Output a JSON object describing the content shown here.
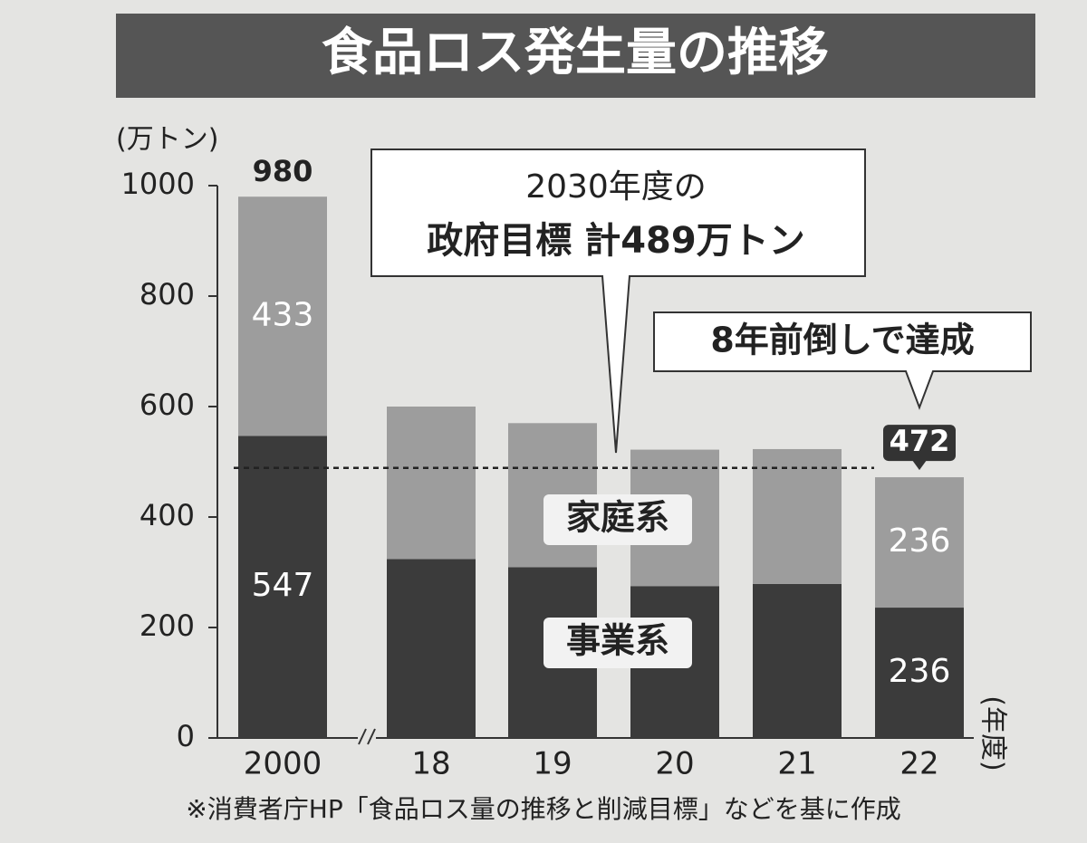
{
  "chart_data": {
    "type": "stacked-bar",
    "title": "食品ロス発生量の推移",
    "ylabel": "(万トン)",
    "xlabel": "(年度)",
    "categories": [
      "2000",
      "18",
      "19",
      "20",
      "21",
      "22"
    ],
    "series": [
      {
        "name": "事業系",
        "color": "#3b3b3b",
        "values": [
          547,
          324,
          309,
          275,
          279,
          236
        ],
        "show_labels": [
          true,
          false,
          false,
          false,
          false,
          true
        ]
      },
      {
        "name": "家庭系",
        "color": "#9d9d9d",
        "values": [
          433,
          276,
          261,
          247,
          244,
          236
        ],
        "show_labels": [
          true,
          false,
          false,
          false,
          false,
          true
        ]
      }
    ],
    "totals": [
      980,
      null,
      null,
      null,
      null,
      472
    ],
    "target": 489,
    "ylim": [
      0,
      1000
    ],
    "yticks": [
      0,
      200,
      400,
      600,
      800,
      1000
    ],
    "callouts": [
      "2030年度の",
      "政府目標 計489万トン",
      "8年前倒しで達成"
    ],
    "note": "※消費者庁HP「食品ロス量の推移と削減目標」などを基に作成"
  }
}
